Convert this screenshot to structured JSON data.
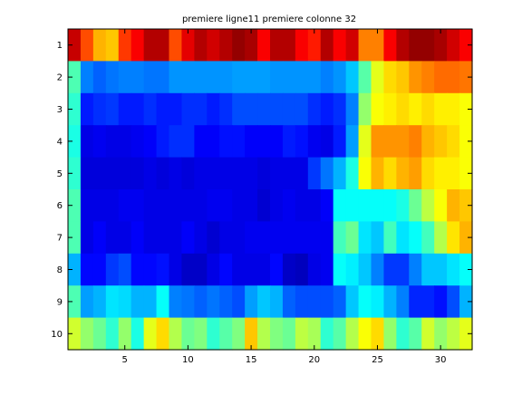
{
  "chart_data": {
    "type": "heatmap",
    "title": "premiere ligne11 premiere colonne 32",
    "xlabel": "",
    "ylabel": "",
    "x_ticks": [
      5,
      10,
      15,
      20,
      25,
      30
    ],
    "y_ticks": [
      1,
      2,
      3,
      4,
      5,
      6,
      7,
      8,
      9,
      10
    ],
    "xlim": [
      0.5,
      32.5
    ],
    "ylim": [
      0.5,
      10.5
    ],
    "colormap": "jet",
    "clim": [
      0,
      1
    ],
    "grid": false,
    "rows": 10,
    "cols": 32,
    "values": [
      [
        0.93,
        0.8,
        0.7,
        0.68,
        0.82,
        0.88,
        0.95,
        0.95,
        0.8,
        0.9,
        0.95,
        0.92,
        0.95,
        0.98,
        0.96,
        0.88,
        0.95,
        0.95,
        0.88,
        0.85,
        0.95,
        0.88,
        0.92,
        0.75,
        0.75,
        0.88,
        0.95,
        0.98,
        0.98,
        0.96,
        0.92,
        0.88
      ],
      [
        0.45,
        0.25,
        0.22,
        0.24,
        0.25,
        0.25,
        0.24,
        0.24,
        0.27,
        0.27,
        0.27,
        0.27,
        0.27,
        0.28,
        0.28,
        0.28,
        0.27,
        0.27,
        0.27,
        0.27,
        0.25,
        0.27,
        0.32,
        0.46,
        0.6,
        0.66,
        0.68,
        0.73,
        0.75,
        0.77,
        0.77,
        0.76
      ],
      [
        0.42,
        0.15,
        0.17,
        0.18,
        0.15,
        0.15,
        0.17,
        0.15,
        0.15,
        0.17,
        0.17,
        0.15,
        0.17,
        0.2,
        0.2,
        0.2,
        0.2,
        0.2,
        0.2,
        0.17,
        0.15,
        0.17,
        0.25,
        0.52,
        0.62,
        0.64,
        0.66,
        0.64,
        0.66,
        0.64,
        0.64,
        0.62
      ],
      [
        0.4,
        0.1,
        0.11,
        0.1,
        0.1,
        0.11,
        0.12,
        0.15,
        0.17,
        0.17,
        0.12,
        0.12,
        0.14,
        0.14,
        0.12,
        0.12,
        0.12,
        0.15,
        0.14,
        0.11,
        0.1,
        0.15,
        0.28,
        0.6,
        0.73,
        0.73,
        0.73,
        0.75,
        0.7,
        0.68,
        0.66,
        0.62
      ],
      [
        0.42,
        0.09,
        0.09,
        0.09,
        0.09,
        0.09,
        0.1,
        0.09,
        0.1,
        0.09,
        0.1,
        0.1,
        0.1,
        0.1,
        0.1,
        0.09,
        0.1,
        0.1,
        0.1,
        0.18,
        0.24,
        0.3,
        0.4,
        0.62,
        0.7,
        0.66,
        0.7,
        0.72,
        0.66,
        0.64,
        0.64,
        0.62
      ],
      [
        0.45,
        0.1,
        0.1,
        0.1,
        0.11,
        0.11,
        0.1,
        0.1,
        0.1,
        0.1,
        0.1,
        0.11,
        0.11,
        0.1,
        0.1,
        0.08,
        0.1,
        0.11,
        0.1,
        0.1,
        0.12,
        0.38,
        0.38,
        0.38,
        0.38,
        0.38,
        0.4,
        0.48,
        0.56,
        0.62,
        0.7,
        0.68
      ],
      [
        0.45,
        0.1,
        0.12,
        0.1,
        0.1,
        0.12,
        0.1,
        0.1,
        0.1,
        0.12,
        0.1,
        0.08,
        0.1,
        0.1,
        0.11,
        0.11,
        0.11,
        0.11,
        0.11,
        0.11,
        0.11,
        0.44,
        0.48,
        0.35,
        0.32,
        0.44,
        0.35,
        0.38,
        0.44,
        0.55,
        0.65,
        0.7
      ],
      [
        0.3,
        0.13,
        0.13,
        0.18,
        0.2,
        0.13,
        0.13,
        0.14,
        0.1,
        0.07,
        0.07,
        0.1,
        0.13,
        0.1,
        0.1,
        0.1,
        0.13,
        0.07,
        0.06,
        0.1,
        0.11,
        0.38,
        0.36,
        0.32,
        0.25,
        0.18,
        0.18,
        0.25,
        0.32,
        0.32,
        0.35,
        0.38
      ],
      [
        0.45,
        0.28,
        0.3,
        0.35,
        0.34,
        0.3,
        0.3,
        0.38,
        0.25,
        0.24,
        0.22,
        0.24,
        0.22,
        0.2,
        0.28,
        0.32,
        0.3,
        0.22,
        0.2,
        0.2,
        0.2,
        0.22,
        0.32,
        0.38,
        0.36,
        0.3,
        0.25,
        0.16,
        0.16,
        0.14,
        0.2,
        0.3
      ],
      [
        0.58,
        0.52,
        0.48,
        0.42,
        0.52,
        0.4,
        0.6,
        0.66,
        0.55,
        0.48,
        0.5,
        0.42,
        0.46,
        0.5,
        0.68,
        0.55,
        0.5,
        0.48,
        0.56,
        0.54,
        0.42,
        0.46,
        0.55,
        0.62,
        0.66,
        0.52,
        0.42,
        0.46,
        0.58,
        0.52,
        0.56,
        0.6
      ]
    ]
  }
}
